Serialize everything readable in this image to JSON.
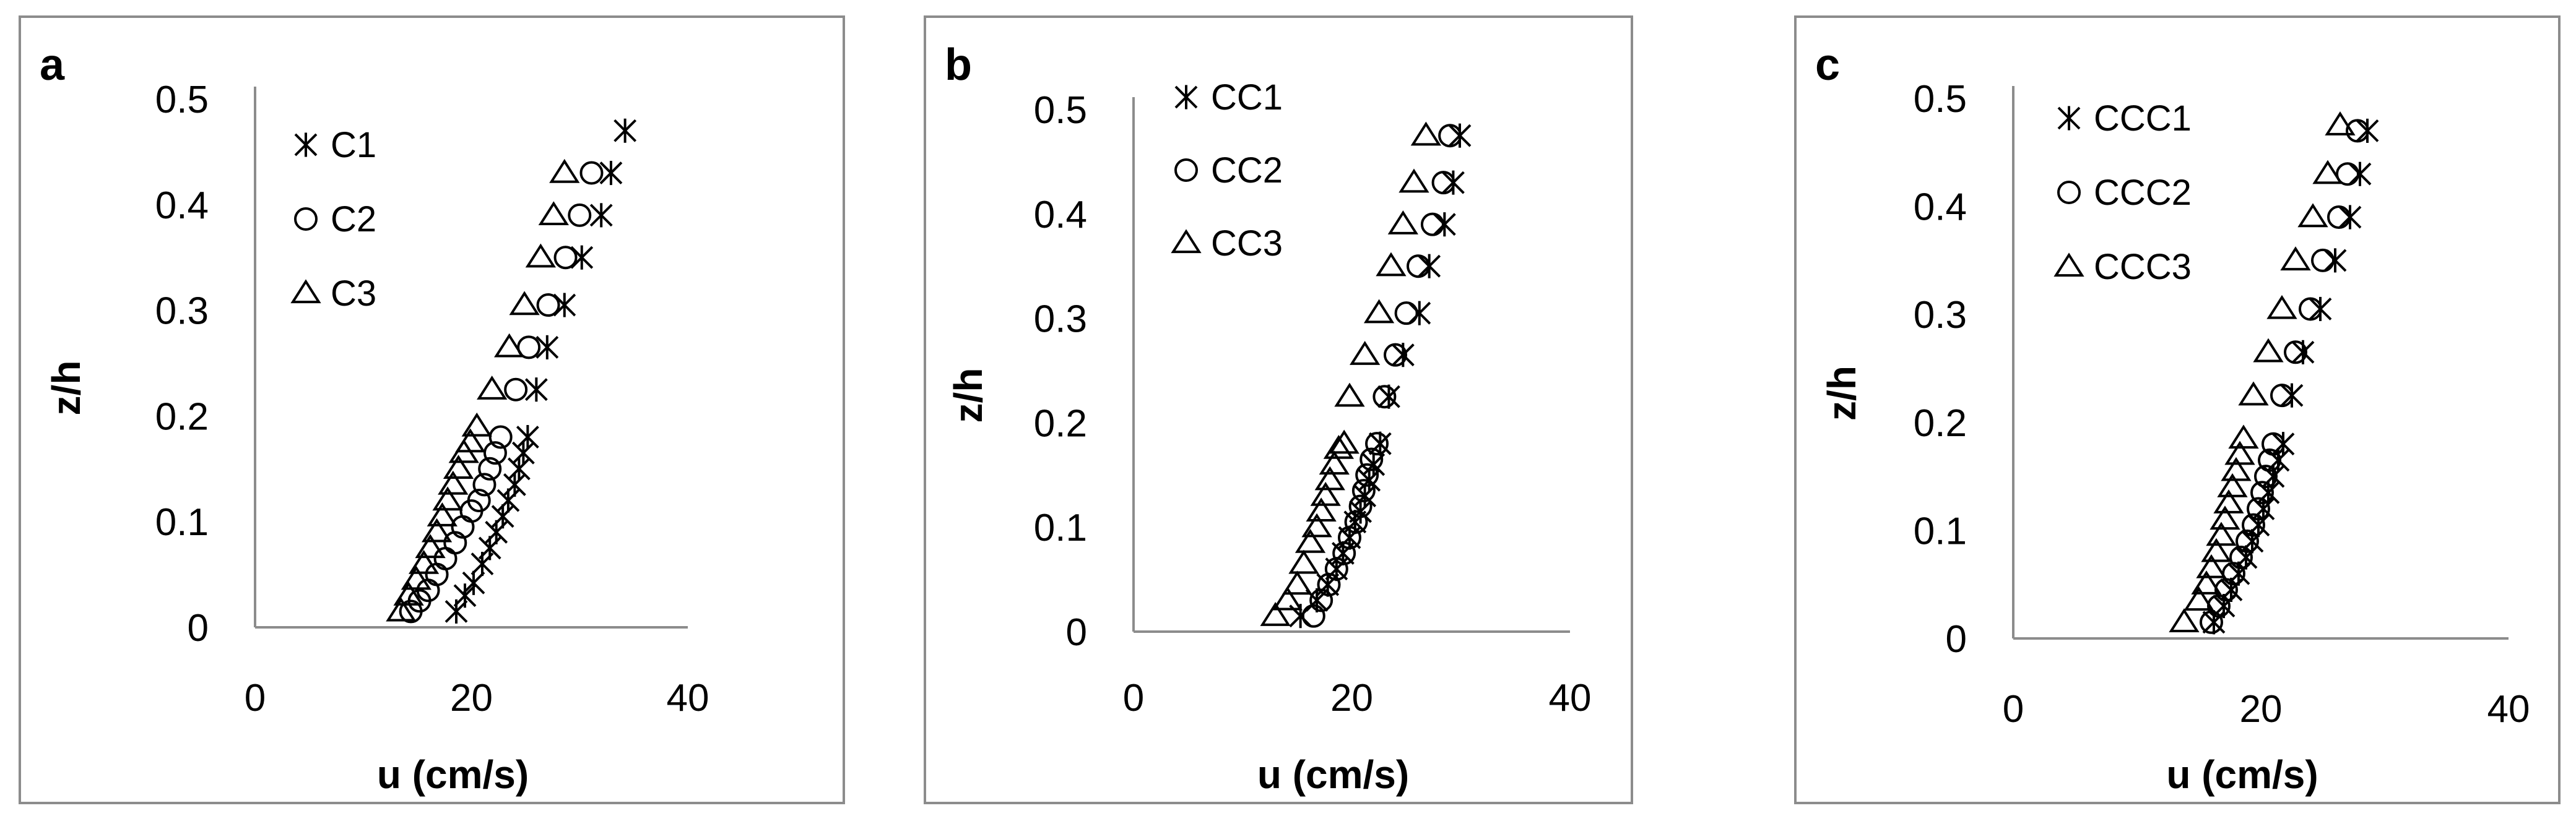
{
  "colors": {
    "marker": "#000000",
    "axis": "#8c8c8c",
    "frame": "#8c8c8c",
    "background": "#ffffff"
  },
  "chart_data": [
    {
      "panel_label": "a",
      "type": "scatter",
      "xlabel": "u (cm/s)",
      "ylabel": "z/h",
      "xlim": [
        0,
        40
      ],
      "ylim": [
        0,
        0.5
      ],
      "xticks": [
        "0",
        "20",
        "40"
      ],
      "yticks": [
        "0",
        "0.1",
        "0.2",
        "0.3",
        "0.4",
        "0.5"
      ],
      "legend_position": "top-left",
      "series": [
        {
          "name": "C1",
          "marker": "asterisk",
          "x": [
            18.6,
            19.4,
            20.2,
            21.0,
            21.7,
            22.3,
            22.9,
            23.4,
            24.0,
            24.4,
            24.8,
            25.2,
            26.0,
            27.0,
            28.6,
            30.2,
            32.0,
            32.9,
            34.2
          ],
          "y": [
            0.015,
            0.03,
            0.042,
            0.06,
            0.075,
            0.09,
            0.105,
            0.12,
            0.135,
            0.15,
            0.165,
            0.18,
            0.225,
            0.265,
            0.305,
            0.35,
            0.39,
            0.43,
            0.47
          ]
        },
        {
          "name": "C2",
          "marker": "circle",
          "x": [
            14.4,
            15.2,
            16.0,
            16.8,
            17.6,
            18.5,
            19.2,
            20.0,
            20.7,
            21.2,
            21.7,
            22.2,
            22.7,
            24.1,
            25.3,
            27.1,
            28.7,
            30.0,
            31.1
          ],
          "y": [
            0.015,
            0.025,
            0.035,
            0.05,
            0.065,
            0.08,
            0.095,
            0.11,
            0.12,
            0.135,
            0.15,
            0.165,
            0.18,
            0.225,
            0.265,
            0.305,
            0.35,
            0.39,
            0.43
          ]
        },
        {
          "name": "C3",
          "marker": "triangle",
          "x": [
            13.5,
            14.2,
            14.9,
            15.6,
            16.2,
            16.8,
            17.3,
            17.8,
            18.3,
            18.8,
            19.3,
            19.9,
            20.5,
            21.9,
            23.5,
            24.9,
            26.4,
            27.6,
            28.6
          ],
          "y": [
            0.015,
            0.03,
            0.045,
            0.06,
            0.075,
            0.09,
            0.105,
            0.12,
            0.135,
            0.15,
            0.165,
            0.175,
            0.19,
            0.225,
            0.265,
            0.305,
            0.35,
            0.39,
            0.43
          ]
        }
      ]
    },
    {
      "panel_label": "b",
      "type": "scatter",
      "xlabel": "u (cm/s)",
      "ylabel": "z/h",
      "xlim": [
        0,
        40
      ],
      "ylim": [
        0,
        0.5
      ],
      "xticks": [
        "0",
        "20",
        "40"
      ],
      "yticks": [
        "0",
        "0.1",
        "0.2",
        "0.3",
        "0.4",
        "0.5"
      ],
      "legend_position": "top-left",
      "series": [
        {
          "name": "CC1",
          "marker": "asterisk",
          "x": [
            15.3,
            16.8,
            17.8,
            18.6,
            19.2,
            19.8,
            20.3,
            20.8,
            21.2,
            21.6,
            22.0,
            22.6,
            23.4,
            24.7,
            26.2,
            27.1,
            28.5,
            29.3,
            29.9
          ],
          "y": [
            0.015,
            0.03,
            0.045,
            0.06,
            0.075,
            0.09,
            0.105,
            0.115,
            0.13,
            0.145,
            0.16,
            0.18,
            0.225,
            0.265,
            0.305,
            0.35,
            0.39,
            0.43,
            0.475
          ]
        },
        {
          "name": "CC2",
          "marker": "circle",
          "x": [
            16.5,
            17.2,
            17.9,
            18.6,
            19.3,
            19.8,
            20.4,
            20.8,
            21.1,
            21.4,
            21.8,
            22.3,
            23.0,
            24.0,
            25.0,
            26.1,
            27.4,
            28.4,
            29.0
          ],
          "y": [
            0.015,
            0.03,
            0.045,
            0.06,
            0.075,
            0.09,
            0.105,
            0.12,
            0.135,
            0.15,
            0.165,
            0.18,
            0.225,
            0.265,
            0.305,
            0.35,
            0.39,
            0.43,
            0.475
          ]
        },
        {
          "name": "CC3",
          "marker": "triangle",
          "x": [
            13.0,
            14.1,
            15.0,
            15.6,
            16.2,
            16.8,
            17.2,
            17.6,
            18.0,
            18.4,
            18.8,
            19.3,
            19.8,
            21.2,
            22.5,
            23.6,
            24.7,
            25.7,
            26.8
          ],
          "y": [
            0.015,
            0.03,
            0.045,
            0.065,
            0.085,
            0.1,
            0.115,
            0.13,
            0.145,
            0.16,
            0.175,
            0.18,
            0.225,
            0.265,
            0.305,
            0.35,
            0.39,
            0.43,
            0.475
          ]
        }
      ]
    },
    {
      "panel_label": "c",
      "type": "scatter",
      "xlabel": "u (cm/s)",
      "ylabel": "z/h",
      "xlim": [
        0,
        40
      ],
      "ylim": [
        0,
        0.5
      ],
      "xticks": [
        "0",
        "20",
        "40"
      ],
      "yticks": [
        "0",
        "0.1",
        "0.2",
        "0.3",
        "0.4",
        "0.5"
      ],
      "legend_position": "top-left",
      "series": [
        {
          "name": "CCC1",
          "marker": "asterisk",
          "x": [
            16.2,
            17.0,
            17.6,
            18.2,
            18.8,
            19.3,
            19.8,
            20.2,
            20.6,
            21.0,
            21.4,
            21.8,
            22.5,
            23.4,
            24.8,
            26.0,
            27.2,
            28.0,
            28.6
          ],
          "y": [
            0.015,
            0.03,
            0.045,
            0.06,
            0.075,
            0.09,
            0.105,
            0.12,
            0.135,
            0.15,
            0.165,
            0.18,
            0.225,
            0.265,
            0.305,
            0.35,
            0.39,
            0.43,
            0.47
          ]
        },
        {
          "name": "CCC2",
          "marker": "circle",
          "x": [
            16.0,
            16.6,
            17.2,
            17.8,
            18.4,
            18.9,
            19.4,
            19.8,
            20.1,
            20.4,
            20.7,
            21.0,
            21.7,
            22.8,
            24.0,
            25.0,
            26.3,
            27.0,
            27.8
          ],
          "y": [
            0.015,
            0.03,
            0.045,
            0.06,
            0.075,
            0.09,
            0.105,
            0.12,
            0.135,
            0.15,
            0.165,
            0.18,
            0.225,
            0.265,
            0.305,
            0.35,
            0.39,
            0.43,
            0.47
          ]
        },
        {
          "name": "CCC3",
          "marker": "triangle",
          "x": [
            13.8,
            15.0,
            15.6,
            16.0,
            16.4,
            16.8,
            17.1,
            17.4,
            17.7,
            18.0,
            18.3,
            18.6,
            19.4,
            20.6,
            21.7,
            22.8,
            24.2,
            25.4,
            26.4
          ],
          "y": [
            0.015,
            0.035,
            0.05,
            0.065,
            0.08,
            0.095,
            0.11,
            0.125,
            0.14,
            0.155,
            0.17,
            0.185,
            0.225,
            0.265,
            0.305,
            0.35,
            0.39,
            0.43,
            0.475
          ]
        }
      ]
    }
  ]
}
